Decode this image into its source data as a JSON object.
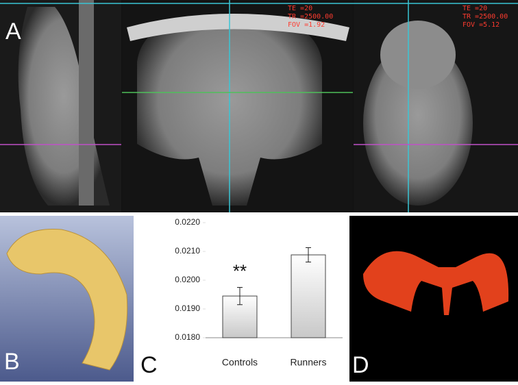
{
  "panels": {
    "a": "A",
    "b": "B",
    "c": "C",
    "d": "D"
  },
  "scan_coronal": {
    "te": "TE =20",
    "tr": "TR =2500.00",
    "fov": "FOV =1.92"
  },
  "scan_axial": {
    "te": "TE =20",
    "tr": "TR =2500.00",
    "fov": "FOV =5.12"
  },
  "chart_data": {
    "type": "bar",
    "categories": [
      "Controls",
      "Runners"
    ],
    "values": [
      0.01945,
      0.02088
    ],
    "errors": [
      0.0003,
      0.00025
    ],
    "color": "#c8c8c8",
    "annotation": "**",
    "ylim": [
      0.018,
      0.022
    ],
    "yticks": [
      {
        "value": 0.018,
        "label": "0.0180"
      },
      {
        "value": 0.019,
        "label": "0.0190"
      },
      {
        "value": 0.02,
        "label": "0.0200"
      },
      {
        "value": 0.021,
        "label": "0.0210"
      },
      {
        "value": 0.022,
        "label": "0.0220"
      }
    ]
  }
}
